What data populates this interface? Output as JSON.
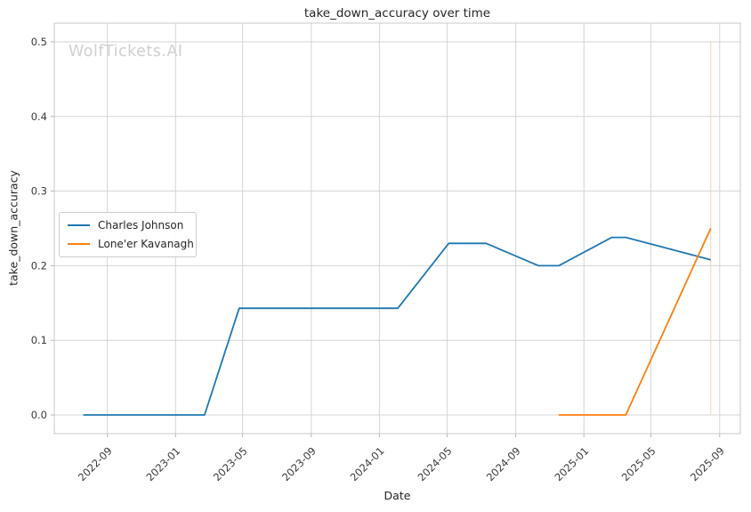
{
  "watermark": "WolfTickets.AI",
  "chart_data": {
    "type": "line",
    "title": "take_down_accuracy over time",
    "xlabel": "Date",
    "ylabel": "take_down_accuracy",
    "grid": true,
    "legend_position": "center-left",
    "x_range": [
      "2022-05-29",
      "2025-10-08"
    ],
    "y_range": [
      -0.025,
      0.525
    ],
    "x_ticks": [
      "2022-09",
      "2023-01",
      "2023-05",
      "2023-09",
      "2024-01",
      "2024-05",
      "2024-09",
      "2025-01",
      "2025-05",
      "2025-09"
    ],
    "y_ticks": [
      0.0,
      0.1,
      0.2,
      0.3,
      0.4,
      0.5
    ],
    "series": [
      {
        "name": "Charles Johnson",
        "color": "#1f77b4",
        "points": [
          {
            "date": "2022-07-20",
            "value": 0.0
          },
          {
            "date": "2023-02-22",
            "value": 0.0
          },
          {
            "date": "2023-04-25",
            "value": 0.143
          },
          {
            "date": "2024-02-03",
            "value": 0.143
          },
          {
            "date": "2024-05-04",
            "value": 0.23
          },
          {
            "date": "2024-07-10",
            "value": 0.23
          },
          {
            "date": "2024-10-12",
            "value": 0.2
          },
          {
            "date": "2024-11-17",
            "value": 0.2
          },
          {
            "date": "2025-02-20",
            "value": 0.238
          },
          {
            "date": "2025-03-17",
            "value": 0.238
          },
          {
            "date": "2025-08-16",
            "value": 0.208
          }
        ]
      },
      {
        "name": "Lone'er Kavanagh",
        "color": "#ff7f0e",
        "points": [
          {
            "date": "2024-11-17",
            "value": 0.0
          },
          {
            "date": "2025-03-17",
            "value": 0.0
          },
          {
            "date": "2025-08-16",
            "value": 0.25
          }
        ]
      }
    ],
    "annotations": [
      {
        "type": "vline",
        "date": "2025-08-16",
        "y_from": 0.0,
        "y_to": 0.5,
        "color": "#fbd9b5"
      }
    ],
    "style": {
      "grid_color": "#d4d4d4",
      "spine_color": "#c9c9c9",
      "tick_color": "#b5b5b5",
      "line_width": 1.8
    }
  }
}
